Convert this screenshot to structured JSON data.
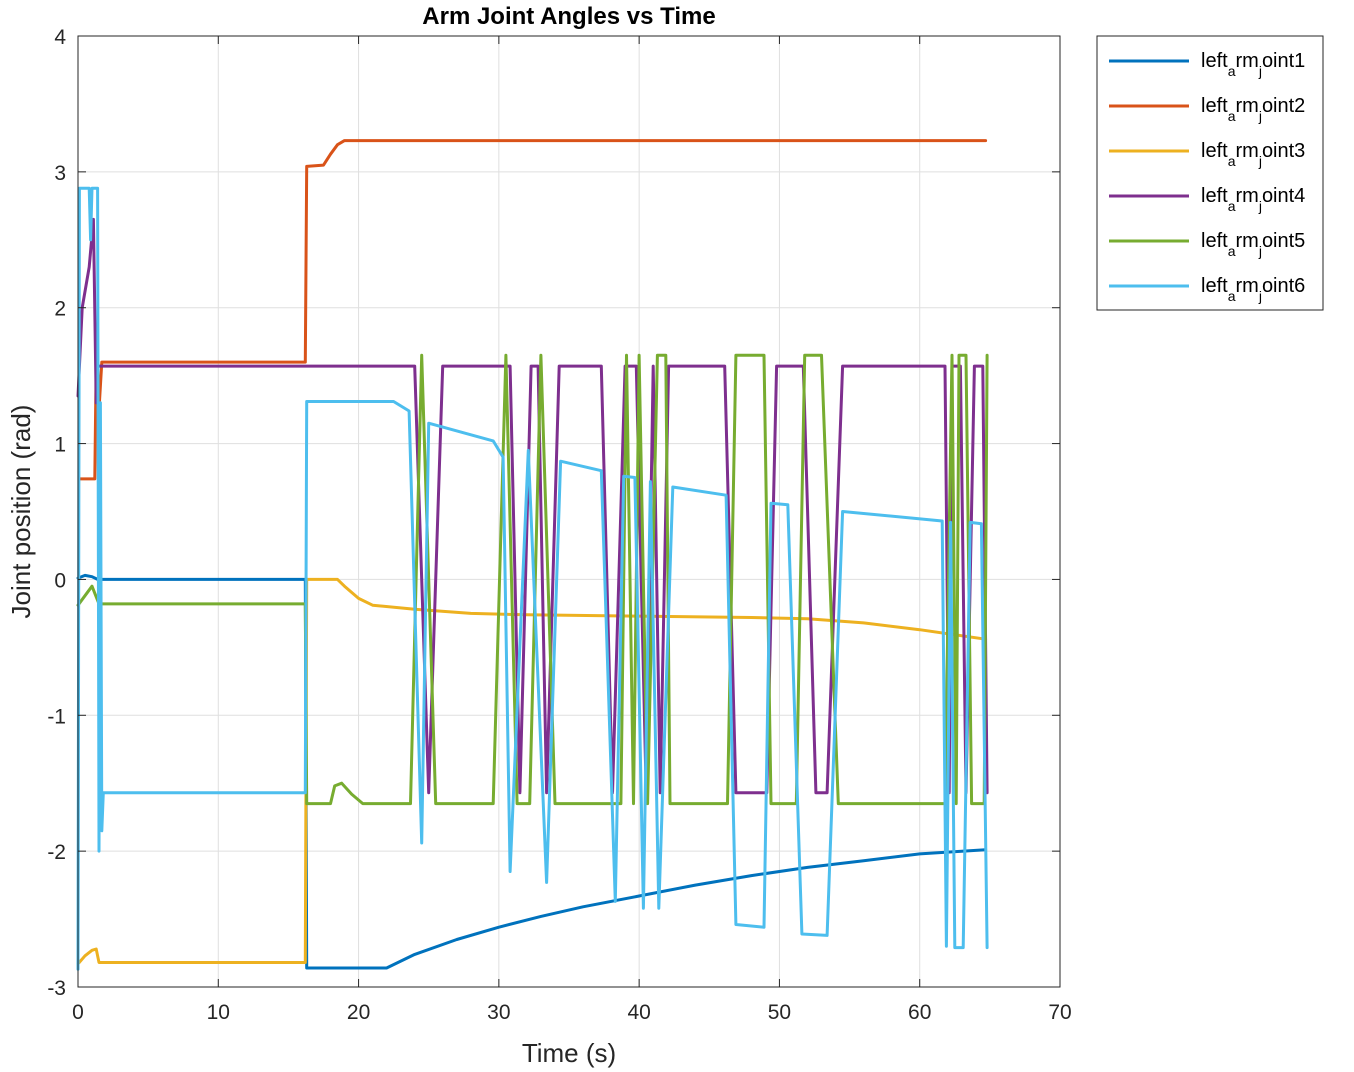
{
  "chart_data": {
    "type": "line",
    "title": "Arm Joint Angles vs Time",
    "xlabel": "Time (s)",
    "ylabel": "Joint position (rad)",
    "xlim": [
      0,
      70
    ],
    "ylim": [
      -3,
      4
    ],
    "xticks": [
      0,
      10,
      20,
      30,
      40,
      50,
      60,
      70
    ],
    "yticks": [
      -3,
      -2,
      -1,
      0,
      1,
      2,
      3,
      4
    ],
    "grid": true,
    "legend_position": "outside-top-right",
    "series": [
      {
        "name": "left_arm_joint1",
        "legend": {
          "base": "left",
          "sub": "a",
          "mid": "rm",
          "sub2": "j",
          "tail": "oint1"
        },
        "color": "#0072BD",
        "points": [
          [
            0,
            0.01
          ],
          [
            0.5,
            0.03
          ],
          [
            1,
            0.02
          ],
          [
            1.4,
            0
          ],
          [
            16.2,
            0
          ],
          [
            16.3,
            -2.86
          ],
          [
            22,
            -2.86
          ],
          [
            24,
            -2.76
          ],
          [
            27,
            -2.65
          ],
          [
            30,
            -2.56
          ],
          [
            33,
            -2.48
          ],
          [
            36,
            -2.41
          ],
          [
            40,
            -2.33
          ],
          [
            44,
            -2.25
          ],
          [
            48,
            -2.18
          ],
          [
            52,
            -2.12
          ],
          [
            56,
            -2.07
          ],
          [
            60,
            -2.02
          ],
          [
            64.7,
            -1.99
          ]
        ]
      },
      {
        "name": "left_arm_joint2",
        "legend": {
          "base": "left",
          "sub": "a",
          "mid": "rm",
          "sub2": "j",
          "tail": "oint2"
        },
        "color": "#D95319",
        "points": [
          [
            0.1,
            0.74
          ],
          [
            1.2,
            0.74
          ],
          [
            1.3,
            1.6
          ],
          [
            1.5,
            1.25
          ],
          [
            1.7,
            1.6
          ],
          [
            16.2,
            1.6
          ],
          [
            16.3,
            3.04
          ],
          [
            17.5,
            3.05
          ],
          [
            18,
            3.13
          ],
          [
            18.5,
            3.2
          ],
          [
            19,
            3.23
          ],
          [
            64.7,
            3.23
          ]
        ]
      },
      {
        "name": "left_arm_joint3",
        "legend": {
          "base": "left",
          "sub": "a",
          "mid": "rm",
          "sub2": "j",
          "tail": "oint3"
        },
        "color": "#EDB120",
        "points": [
          [
            0,
            -2.83
          ],
          [
            0.5,
            -2.77
          ],
          [
            1,
            -2.73
          ],
          [
            1.3,
            -2.72
          ],
          [
            1.5,
            -2.82
          ],
          [
            16.2,
            -2.82
          ],
          [
            16.3,
            0
          ],
          [
            18.5,
            0
          ],
          [
            19,
            -0.05
          ],
          [
            20,
            -0.14
          ],
          [
            21,
            -0.19
          ],
          [
            24,
            -0.22
          ],
          [
            28,
            -0.25
          ],
          [
            32,
            -0.26
          ],
          [
            40,
            -0.27
          ],
          [
            48,
            -0.28
          ],
          [
            52,
            -0.29
          ],
          [
            56,
            -0.32
          ],
          [
            60,
            -0.37
          ],
          [
            64.7,
            -0.44
          ]
        ]
      },
      {
        "name": "left_arm_joint4",
        "legend": {
          "base": "left",
          "sub": "a",
          "mid": "rm",
          "sub2": "j",
          "tail": "oint4"
        },
        "color": "#7E2F8E",
        "points": [
          [
            0,
            1.35
          ],
          [
            0.3,
            2.0
          ],
          [
            0.8,
            2.3
          ],
          [
            1.1,
            2.65
          ],
          [
            1.3,
            1.3
          ],
          [
            1.4,
            1.57
          ],
          [
            16.2,
            1.57
          ],
          [
            24,
            1.57
          ],
          [
            25,
            -1.57
          ],
          [
            26,
            1.57
          ],
          [
            30.8,
            1.57
          ],
          [
            31.5,
            -1.57
          ],
          [
            32.3,
            1.57
          ],
          [
            32.8,
            1.57
          ],
          [
            33.4,
            -1.57
          ],
          [
            34.3,
            1.57
          ],
          [
            37.3,
            1.57
          ],
          [
            38.1,
            -1.57
          ],
          [
            39,
            1.57
          ],
          [
            39.8,
            1.57
          ],
          [
            40.5,
            -1.57
          ],
          [
            41,
            1.57
          ],
          [
            41.5,
            -1.57
          ],
          [
            42.1,
            1.57
          ],
          [
            46.1,
            1.57
          ],
          [
            46.9,
            -1.57
          ],
          [
            49.1,
            -1.57
          ],
          [
            49.8,
            1.57
          ],
          [
            51.7,
            1.57
          ],
          [
            52.6,
            -1.57
          ],
          [
            53.4,
            -1.57
          ],
          [
            54.5,
            1.57
          ],
          [
            61.8,
            1.57
          ],
          [
            62.1,
            -1.57
          ],
          [
            62.3,
            1.57
          ],
          [
            62.9,
            1.57
          ],
          [
            63.3,
            -1.57
          ],
          [
            63.9,
            1.57
          ],
          [
            64.5,
            1.57
          ],
          [
            64.8,
            -1.57
          ]
        ]
      },
      {
        "name": "left_arm_joint5",
        "legend": {
          "base": "left",
          "sub": "a",
          "mid": "rm",
          "sub2": "j",
          "tail": "oint5"
        },
        "color": "#77AC30",
        "points": [
          [
            0,
            -0.19
          ],
          [
            0.5,
            -0.12
          ],
          [
            1,
            -0.05
          ],
          [
            1.5,
            -0.18
          ],
          [
            16.2,
            -0.18
          ],
          [
            16.3,
            -1.65
          ],
          [
            18,
            -1.65
          ],
          [
            18.3,
            -1.52
          ],
          [
            18.8,
            -1.5
          ],
          [
            19.5,
            -1.58
          ],
          [
            20.3,
            -1.65
          ],
          [
            23.7,
            -1.65
          ],
          [
            24.5,
            1.65
          ],
          [
            25.5,
            -1.65
          ],
          [
            29.6,
            -1.65
          ],
          [
            30.5,
            1.65
          ],
          [
            31.3,
            -1.65
          ],
          [
            32.2,
            -1.65
          ],
          [
            33,
            1.65
          ],
          [
            34,
            -1.65
          ],
          [
            38.7,
            -1.65
          ],
          [
            39.1,
            1.65
          ],
          [
            39.6,
            -1.65
          ],
          [
            40,
            1.65
          ],
          [
            40.6,
            -1.65
          ],
          [
            41.3,
            1.65
          ],
          [
            41.9,
            1.65
          ],
          [
            42.2,
            -1.65
          ],
          [
            46.3,
            -1.65
          ],
          [
            46.9,
            1.65
          ],
          [
            48.9,
            1.65
          ],
          [
            49.4,
            -1.65
          ],
          [
            51.2,
            -1.65
          ],
          [
            51.8,
            1.65
          ],
          [
            53,
            1.65
          ],
          [
            54.2,
            -1.65
          ],
          [
            61.8,
            -1.65
          ],
          [
            62.3,
            1.65
          ],
          [
            62.6,
            -1.65
          ],
          [
            62.8,
            1.65
          ],
          [
            63.3,
            1.65
          ],
          [
            63.7,
            -1.65
          ],
          [
            64.6,
            -1.65
          ],
          [
            64.8,
            1.65
          ]
        ]
      },
      {
        "name": "left_arm_joint6",
        "legend": {
          "base": "left",
          "sub": "a",
          "mid": "rm",
          "sub2": "j",
          "tail": "oint6"
        },
        "color": "#4DBEEE",
        "points": [
          [
            0,
            -2.87
          ],
          [
            0.1,
            2.88
          ],
          [
            0.8,
            2.88
          ],
          [
            0.9,
            2.5
          ],
          [
            1,
            2.88
          ],
          [
            1.4,
            2.88
          ],
          [
            1.5,
            -2.0
          ],
          [
            1.6,
            1.3
          ],
          [
            1.7,
            -1.85
          ],
          [
            1.8,
            -1.57
          ],
          [
            16.2,
            -1.57
          ],
          [
            16.3,
            1.31
          ],
          [
            22.5,
            1.31
          ],
          [
            23.6,
            1.24
          ],
          [
            24.5,
            -1.94
          ],
          [
            25,
            1.15
          ],
          [
            29.6,
            1.02
          ],
          [
            30.3,
            0.9
          ],
          [
            30.8,
            -2.15
          ],
          [
            32.1,
            0.95
          ],
          [
            33.4,
            -2.23
          ],
          [
            34.4,
            0.87
          ],
          [
            37.3,
            0.8
          ],
          [
            38.3,
            -2.37
          ],
          [
            38.9,
            0.76
          ],
          [
            39.7,
            0.75
          ],
          [
            40.3,
            -2.42
          ],
          [
            40.8,
            0.72
          ],
          [
            41.4,
            -2.42
          ],
          [
            42.4,
            0.68
          ],
          [
            46.2,
            0.62
          ],
          [
            46.9,
            -2.54
          ],
          [
            48.9,
            -2.56
          ],
          [
            49.4,
            0.56
          ],
          [
            50.6,
            0.55
          ],
          [
            51.6,
            -2.61
          ],
          [
            53.4,
            -2.62
          ],
          [
            54.5,
            0.5
          ],
          [
            61.6,
            0.43
          ],
          [
            61.9,
            -2.7
          ],
          [
            62.2,
            0.42
          ],
          [
            62.5,
            -2.71
          ],
          [
            63.1,
            -2.71
          ],
          [
            63.6,
            0.42
          ],
          [
            64.4,
            0.41
          ],
          [
            64.8,
            -2.71
          ]
        ]
      }
    ]
  }
}
